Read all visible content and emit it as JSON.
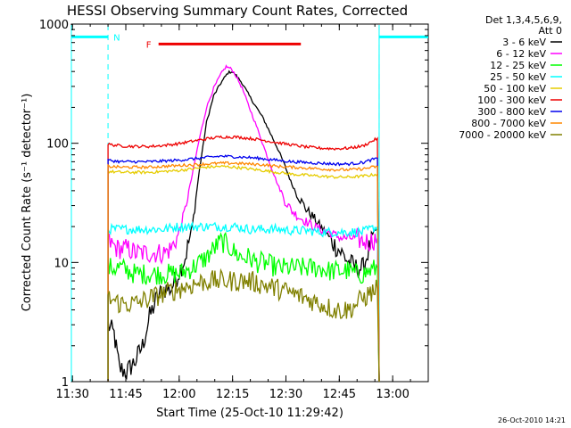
{
  "chart_data": {
    "type": "line",
    "title": "HESSI Observing Summary Count Rates, Corrected",
    "xlabel": "Start Time (25-Oct-10 11:29:42)",
    "ylabel": "Corrected Count Rate (s⁻¹ detector⁻¹)",
    "yscale": "log",
    "ylim": [
      1,
      1000
    ],
    "xlim_minutes": [
      0,
      100.3
    ],
    "x_ticks": [
      {
        "m": 0.3,
        "label": "11:30"
      },
      {
        "m": 15.3,
        "label": "11:45"
      },
      {
        "m": 30.3,
        "label": "12:00"
      },
      {
        "m": 45.3,
        "label": "12:15"
      },
      {
        "m": 60.3,
        "label": "12:30"
      },
      {
        "m": 75.3,
        "label": "12:45"
      },
      {
        "m": 90.3,
        "label": "13:00"
      }
    ],
    "y_ticks": [
      {
        "v": 1,
        "label": "1"
      },
      {
        "v": 10,
        "label": "10"
      },
      {
        "v": 100,
        "label": "100"
      },
      {
        "v": 1000,
        "label": "1000"
      }
    ],
    "legend": {
      "position": "right",
      "header": [
        "Det 1,3,4,5,6,9,",
        "Att 0"
      ]
    },
    "data_interval_minutes": [
      10.3,
      86.5
    ],
    "series": [
      {
        "name": "3 - 6 keV",
        "color": "#000000",
        "x": [
          10.3,
          12,
          13.5,
          15.5,
          18,
          20,
          22,
          24,
          26,
          28,
          30,
          32,
          34,
          36,
          38,
          40,
          42,
          44,
          45,
          46,
          48,
          50,
          52,
          54,
          56,
          58,
          60,
          62,
          64,
          66,
          68,
          70,
          72,
          74,
          76,
          78,
          80,
          82,
          84,
          86
        ],
        "y": [
          3,
          2.5,
          1.3,
          1.2,
          1.5,
          2,
          3.5,
          5,
          6,
          6,
          8,
          11,
          20,
          60,
          150,
          250,
          320,
          390,
          400,
          380,
          320,
          250,
          200,
          160,
          120,
          90,
          65,
          45,
          35,
          28,
          24,
          20,
          17,
          14,
          12,
          10,
          9,
          9,
          14,
          20
        ]
      },
      {
        "name": "6 - 12 keV",
        "color": "#ff00ff",
        "x": [
          10.3,
          13,
          16,
          18,
          20,
          22,
          24,
          26,
          28,
          30,
          32,
          34,
          36,
          38,
          40,
          42,
          43.5,
          45,
          46,
          48,
          50,
          52,
          54,
          56,
          58,
          60,
          62,
          64,
          66,
          68,
          70,
          72,
          74,
          76,
          78,
          80,
          82,
          84,
          86
        ],
        "y": [
          15,
          13,
          13,
          12,
          12,
          12,
          12,
          12,
          13,
          17,
          28,
          55,
          110,
          200,
          290,
          380,
          440,
          420,
          380,
          290,
          200,
          140,
          95,
          65,
          45,
          33,
          27,
          24,
          22,
          20,
          19,
          18,
          17,
          16,
          16,
          16,
          15,
          15,
          16
        ]
      },
      {
        "name": "12 - 25 keV",
        "color": "#00ff00",
        "x": [
          10.3,
          14,
          18,
          22,
          26,
          30,
          34,
          36,
          38,
          40,
          42,
          44,
          46,
          48,
          50,
          52,
          54,
          56,
          58,
          60,
          62,
          64,
          66,
          68,
          70,
          72,
          74,
          76,
          78,
          80,
          82,
          84,
          86
        ],
        "y": [
          9,
          9,
          8,
          8,
          8,
          8,
          9,
          10,
          11,
          13,
          15,
          14,
          12,
          11,
          11,
          10,
          10,
          9.5,
          9,
          9,
          9,
          9,
          9,
          9,
          9,
          8.5,
          8.5,
          8.5,
          8.5,
          8,
          8,
          8.5,
          9
        ]
      },
      {
        "name": "25 - 50 keV",
        "color": "#00ffff",
        "x": [
          10.3,
          14,
          18,
          22,
          26,
          30,
          34,
          38,
          42,
          46,
          50,
          54,
          58,
          62,
          66,
          70,
          74,
          78,
          82,
          86
        ],
        "y": [
          19,
          19,
          19,
          19,
          19,
          20,
          20,
          20,
          20,
          20,
          19,
          19,
          19,
          18.5,
          18.5,
          18,
          18,
          18,
          18,
          20
        ]
      },
      {
        "name": "50 - 100 keV",
        "color": "#e6cc00",
        "x": [
          10.3,
          14,
          18,
          22,
          26,
          30,
          34,
          38,
          42,
          46,
          50,
          54,
          58,
          62,
          66,
          70,
          74,
          78,
          82,
          86
        ],
        "y": [
          58,
          57,
          57,
          57,
          58,
          59,
          61,
          63,
          64,
          63,
          61,
          59,
          57,
          55,
          54,
          53,
          52,
          52,
          53,
          55
        ]
      },
      {
        "name": "100 - 300 keV",
        "color": "#ee0000",
        "x": [
          10.3,
          14,
          18,
          22,
          26,
          30,
          34,
          38,
          42,
          46,
          50,
          54,
          58,
          62,
          66,
          70,
          74,
          78,
          82,
          86
        ],
        "y": [
          98,
          95,
          94,
          94,
          96,
          99,
          104,
          109,
          113,
          113,
          110,
          106,
          101,
          97,
          93,
          91,
          90,
          91,
          95,
          110
        ]
      },
      {
        "name": "300 - 800 keV",
        "color": "#0000ee",
        "x": [
          10.3,
          14,
          18,
          22,
          26,
          30,
          34,
          38,
          42,
          46,
          50,
          54,
          58,
          62,
          66,
          70,
          74,
          78,
          82,
          86
        ],
        "y": [
          72,
          70,
          70,
          70,
          71,
          72,
          74,
          76,
          78,
          77,
          76,
          74,
          72,
          70,
          69,
          68,
          67,
          67,
          69,
          75
        ]
      },
      {
        "name": "800 - 7000 keV",
        "color": "#ff8800",
        "x": [
          10.3,
          14,
          18,
          22,
          26,
          30,
          34,
          38,
          42,
          46,
          50,
          54,
          58,
          62,
          66,
          70,
          74,
          78,
          82,
          86
        ],
        "y": [
          64,
          63,
          63,
          63,
          64,
          65,
          66,
          67,
          68,
          68,
          67,
          66,
          64,
          63,
          62,
          61,
          60,
          60,
          61,
          64
        ]
      },
      {
        "name": "7000 - 20000 keV",
        "color": "#808000",
        "x": [
          10.3,
          14,
          18,
          22,
          26,
          30,
          34,
          38,
          42,
          46,
          50,
          54,
          58,
          62,
          66,
          70,
          74,
          78,
          82,
          86
        ],
        "y": [
          5,
          4.5,
          4.5,
          5,
          5.5,
          6,
          6.5,
          7,
          7,
          7,
          7,
          6.5,
          6,
          5.5,
          5,
          4.5,
          4,
          4,
          5,
          6
        ]
      }
    ],
    "annotations": [
      {
        "label": "N",
        "color": "#00ffff",
        "x_range_minutes": [
          0,
          10.3
        ],
        "x_range2_minutes": [
          86.5,
          100.3
        ],
        "y": 780,
        "dashed_x_minutes": [
          10.3,
          86.5
        ]
      },
      {
        "label": "F",
        "color": "#ee0000",
        "x_range_minutes": [
          24.5,
          64.5
        ],
        "y": 680
      }
    ]
  },
  "footer": {
    "timestamp": "26-Oct-2010 14:21"
  }
}
